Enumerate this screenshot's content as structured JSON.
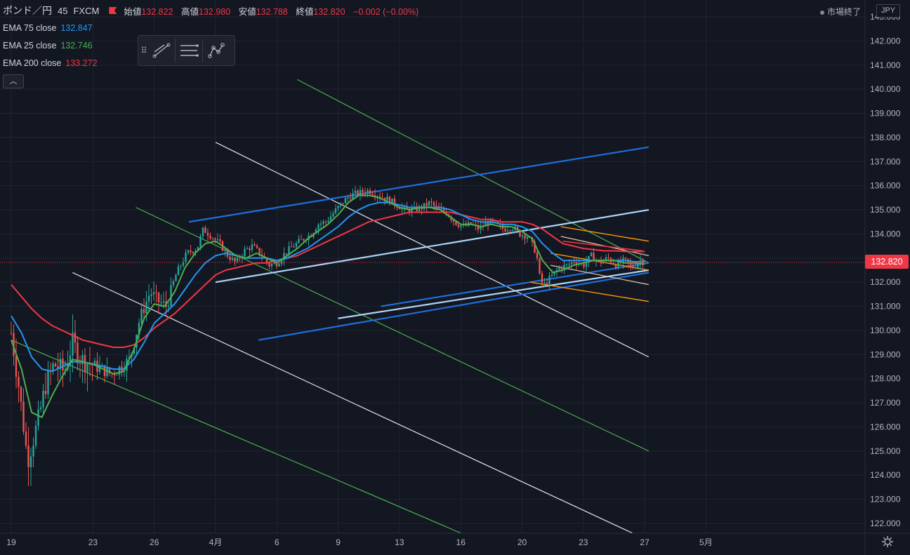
{
  "header": {
    "symbol": "ポンド／円",
    "interval": "45",
    "exchange": "FXCM",
    "open_label": "始値",
    "open": "132.822",
    "high_label": "高値",
    "high": "132.980",
    "low_label": "安値",
    "low": "132.788",
    "close_label": "終値",
    "close": "132.820",
    "change": "−0.002 (−0.00%)"
  },
  "indicators": [
    {
      "label": "EMA 75 close",
      "value": "132.847",
      "color": "#2196f3"
    },
    {
      "label": "EMA 25 close",
      "value": "132.746",
      "color": "#4caf50"
    },
    {
      "label": "EMA 200 close",
      "value": "133.272",
      "color": "#f23645"
    }
  ],
  "collapse_icon": "chevron-up-icon",
  "toolbar_icons": [
    "drag-handle-icon",
    "trend-line-icon",
    "parallel-lines-icon",
    "pattern-nodes-icon"
  ],
  "market_status": "市場終了",
  "currency": "JPY",
  "current_price": "132.820",
  "settings_icon": "gear-icon",
  "chart_data": {
    "type": "candlestick",
    "y_axis": {
      "min": 121.6,
      "max": 143.3,
      "ticks": [
        "143.000",
        "142.000",
        "141.000",
        "140.000",
        "139.000",
        "138.000",
        "137.000",
        "136.000",
        "135.000",
        "134.000",
        "133.000",
        "132.000",
        "131.000",
        "130.000",
        "129.000",
        "128.000",
        "127.000",
        "126.000",
        "125.000",
        "124.000",
        "123.000",
        "122.000"
      ]
    },
    "x_axis": {
      "range_days": [
        19,
        50.2
      ],
      "ticks": [
        {
          "label": "19",
          "day": 19
        },
        {
          "label": "23",
          "day": 23
        },
        {
          "label": "26",
          "day": 26
        },
        {
          "label": "4月",
          "day": 29
        },
        {
          "label": "6",
          "day": 32
        },
        {
          "label": "9",
          "day": 35
        },
        {
          "label": "13",
          "day": 38
        },
        {
          "label": "16",
          "day": 41
        },
        {
          "label": "20",
          "day": 44
        },
        {
          "label": "23",
          "day": 47
        },
        {
          "label": "27",
          "day": 50
        },
        {
          "label": "5月",
          "day": 53
        }
      ]
    },
    "grid": true,
    "close_path": [
      [
        19,
        129.9
      ],
      [
        19.4,
        127.5
      ],
      [
        19.8,
        124.6
      ],
      [
        20.3,
        126.2
      ],
      [
        20.7,
        127.8
      ],
      [
        21.1,
        128.6
      ],
      [
        21.6,
        128.3
      ],
      [
        22.0,
        129.5
      ],
      [
        22.4,
        128.8
      ],
      [
        22.9,
        128.6
      ],
      [
        23.4,
        128.4
      ],
      [
        23.9,
        128.2
      ],
      [
        24.4,
        128.5
      ],
      [
        24.8,
        128.8
      ],
      [
        25.3,
        130.5
      ],
      [
        25.8,
        131.6
      ],
      [
        26.2,
        131.2
      ],
      [
        26.6,
        131.0
      ],
      [
        27.1,
        132.4
      ],
      [
        27.6,
        133.2
      ],
      [
        28.1,
        133.4
      ],
      [
        28.4,
        134.2
      ],
      [
        28.8,
        133.9
      ],
      [
        29.2,
        133.6
      ],
      [
        29.6,
        133.1
      ],
      [
        30.0,
        132.8
      ],
      [
        30.4,
        133.3
      ],
      [
        30.8,
        133.5
      ],
      [
        31.3,
        133.1
      ],
      [
        31.6,
        132.7
      ],
      [
        32.0,
        132.8
      ],
      [
        32.4,
        133.2
      ],
      [
        32.8,
        133.5
      ],
      [
        33.3,
        133.8
      ],
      [
        33.7,
        134.0
      ],
      [
        34.0,
        134.4
      ],
      [
        34.4,
        134.5
      ],
      [
        34.8,
        134.9
      ],
      [
        35.2,
        135.3
      ],
      [
        35.6,
        135.6
      ],
      [
        36.0,
        135.7
      ],
      [
        36.5,
        135.8
      ],
      [
        37.0,
        135.6
      ],
      [
        37.5,
        135.4
      ],
      [
        37.9,
        135.2
      ],
      [
        38.3,
        135.0
      ],
      [
        38.7,
        135.0
      ],
      [
        39.1,
        135.1
      ],
      [
        39.5,
        135.3
      ],
      [
        39.9,
        135.0
      ],
      [
        40.3,
        134.9
      ],
      [
        40.7,
        134.5
      ],
      [
        41.1,
        134.3
      ],
      [
        41.5,
        134.4
      ],
      [
        41.9,
        134.2
      ],
      [
        42.3,
        134.5
      ],
      [
        42.7,
        134.4
      ],
      [
        43.1,
        134.2
      ],
      [
        43.5,
        134.3
      ],
      [
        43.9,
        134.0
      ],
      [
        44.3,
        133.9
      ],
      [
        44.7,
        133.2
      ],
      [
        44.9,
        132.0
      ],
      [
        45.1,
        131.9
      ],
      [
        45.4,
        132.2
      ],
      [
        45.8,
        132.6
      ],
      [
        46.2,
        132.7
      ],
      [
        46.6,
        132.9
      ],
      [
        47.0,
        132.7
      ],
      [
        47.4,
        133.1
      ],
      [
        47.8,
        132.8
      ],
      [
        48.2,
        133.0
      ],
      [
        48.6,
        132.7
      ],
      [
        49.0,
        132.9
      ],
      [
        49.4,
        132.6
      ],
      [
        49.8,
        132.9
      ],
      [
        50.0,
        132.82
      ]
    ],
    "ema_paths": {
      "ema25": [
        [
          19,
          129.6
        ],
        [
          19.5,
          128.4
        ],
        [
          20,
          126.6
        ],
        [
          20.5,
          126.4
        ],
        [
          21,
          127.3
        ],
        [
          21.5,
          128.1
        ],
        [
          22,
          128.8
        ],
        [
          22.5,
          128.7
        ],
        [
          23,
          128.6
        ],
        [
          23.5,
          128.4
        ],
        [
          24,
          128.2
        ],
        [
          24.5,
          128.3
        ],
        [
          25,
          129.2
        ],
        [
          25.5,
          130.5
        ],
        [
          26,
          131.1
        ],
        [
          26.5,
          131.0
        ],
        [
          27,
          131.6
        ],
        [
          27.5,
          132.6
        ],
        [
          28,
          133.2
        ],
        [
          28.5,
          133.6
        ],
        [
          29,
          133.7
        ],
        [
          29.5,
          133.4
        ],
        [
          30,
          133.1
        ],
        [
          30.5,
          133.0
        ],
        [
          31,
          133.2
        ],
        [
          31.5,
          133.0
        ],
        [
          32,
          132.8
        ],
        [
          32.5,
          133.1
        ],
        [
          33,
          133.4
        ],
        [
          33.5,
          133.8
        ],
        [
          34,
          134.1
        ],
        [
          34.5,
          134.4
        ],
        [
          35,
          134.8
        ],
        [
          35.5,
          135.3
        ],
        [
          36,
          135.6
        ],
        [
          36.5,
          135.6
        ],
        [
          37,
          135.5
        ],
        [
          37.5,
          135.3
        ],
        [
          38,
          135.1
        ],
        [
          38.5,
          135.0
        ],
        [
          39,
          135.1
        ],
        [
          39.5,
          135.1
        ],
        [
          40,
          135.0
        ],
        [
          40.5,
          134.7
        ],
        [
          41,
          134.4
        ],
        [
          41.5,
          134.4
        ],
        [
          42,
          134.3
        ],
        [
          42.5,
          134.4
        ],
        [
          43,
          134.3
        ],
        [
          43.5,
          134.3
        ],
        [
          44,
          134.1
        ],
        [
          44.5,
          133.8
        ],
        [
          45,
          132.9
        ],
        [
          45.5,
          132.4
        ],
        [
          46,
          132.5
        ],
        [
          46.5,
          132.7
        ],
        [
          47,
          132.8
        ],
        [
          47.5,
          132.9
        ],
        [
          48,
          132.9
        ],
        [
          48.5,
          132.9
        ],
        [
          49,
          132.8
        ],
        [
          49.5,
          132.8
        ],
        [
          50,
          132.75
        ]
      ],
      "ema75": [
        [
          19,
          130.6
        ],
        [
          19.5,
          129.9
        ],
        [
          20,
          128.9
        ],
        [
          20.5,
          128.4
        ],
        [
          21,
          128.3
        ],
        [
          21.5,
          128.5
        ],
        [
          22,
          128.7
        ],
        [
          22.5,
          128.7
        ],
        [
          23,
          128.6
        ],
        [
          23.5,
          128.5
        ],
        [
          24,
          128.4
        ],
        [
          24.5,
          128.4
        ],
        [
          25,
          128.8
        ],
        [
          25.5,
          129.5
        ],
        [
          26,
          130.3
        ],
        [
          26.5,
          130.7
        ],
        [
          27,
          131.1
        ],
        [
          27.5,
          131.7
        ],
        [
          28,
          132.3
        ],
        [
          28.5,
          132.8
        ],
        [
          29,
          133.1
        ],
        [
          29.5,
          133.2
        ],
        [
          30,
          133.1
        ],
        [
          30.5,
          133.0
        ],
        [
          31,
          133.0
        ],
        [
          31.5,
          133.0
        ],
        [
          32,
          132.9
        ],
        [
          32.5,
          133.0
        ],
        [
          33,
          133.2
        ],
        [
          33.5,
          133.4
        ],
        [
          34,
          133.7
        ],
        [
          34.5,
          134.0
        ],
        [
          35,
          134.3
        ],
        [
          35.5,
          134.7
        ],
        [
          36,
          135.0
        ],
        [
          36.5,
          135.2
        ],
        [
          37,
          135.3
        ],
        [
          37.5,
          135.3
        ],
        [
          38,
          135.2
        ],
        [
          38.5,
          135.1
        ],
        [
          39,
          135.1
        ],
        [
          39.5,
          135.1
        ],
        [
          40,
          135.1
        ],
        [
          40.5,
          135.0
        ],
        [
          41,
          134.8
        ],
        [
          41.5,
          134.6
        ],
        [
          42,
          134.5
        ],
        [
          42.5,
          134.5
        ],
        [
          43,
          134.4
        ],
        [
          43.5,
          134.4
        ],
        [
          44,
          134.3
        ],
        [
          44.5,
          134.1
        ],
        [
          45,
          133.6
        ],
        [
          45.5,
          133.2
        ],
        [
          46,
          132.9
        ],
        [
          46.5,
          132.9
        ],
        [
          47,
          132.9
        ],
        [
          47.5,
          132.9
        ],
        [
          48,
          132.9
        ],
        [
          48.5,
          132.9
        ],
        [
          49,
          132.9
        ],
        [
          49.5,
          132.85
        ],
        [
          50,
          132.85
        ]
      ],
      "ema200": [
        [
          19,
          131.9
        ],
        [
          19.5,
          131.4
        ],
        [
          20,
          130.9
        ],
        [
          20.5,
          130.5
        ],
        [
          21,
          130.2
        ],
        [
          21.5,
          130.0
        ],
        [
          22,
          129.8
        ],
        [
          22.5,
          129.6
        ],
        [
          23,
          129.5
        ],
        [
          23.5,
          129.4
        ],
        [
          24,
          129.3
        ],
        [
          24.5,
          129.3
        ],
        [
          25,
          129.4
        ],
        [
          25.5,
          129.7
        ],
        [
          26,
          130.1
        ],
        [
          26.5,
          130.4
        ],
        [
          27,
          130.7
        ],
        [
          27.5,
          131.1
        ],
        [
          28,
          131.5
        ],
        [
          28.5,
          131.9
        ],
        [
          29,
          132.3
        ],
        [
          29.5,
          132.5
        ],
        [
          30,
          132.6
        ],
        [
          30.5,
          132.7
        ],
        [
          31,
          132.8
        ],
        [
          31.5,
          132.8
        ],
        [
          32,
          132.9
        ],
        [
          32.5,
          133.0
        ],
        [
          33,
          133.1
        ],
        [
          33.5,
          133.3
        ],
        [
          34,
          133.5
        ],
        [
          34.5,
          133.7
        ],
        [
          35,
          133.9
        ],
        [
          35.5,
          134.1
        ],
        [
          36,
          134.3
        ],
        [
          36.5,
          134.5
        ],
        [
          37,
          134.6
        ],
        [
          37.5,
          134.7
        ],
        [
          38,
          134.8
        ],
        [
          38.5,
          134.9
        ],
        [
          39,
          134.9
        ],
        [
          39.5,
          134.9
        ],
        [
          40,
          134.9
        ],
        [
          40.5,
          134.9
        ],
        [
          41,
          134.8
        ],
        [
          41.5,
          134.7
        ],
        [
          42,
          134.6
        ],
        [
          42.5,
          134.6
        ],
        [
          43,
          134.5
        ],
        [
          43.5,
          134.5
        ],
        [
          44,
          134.5
        ],
        [
          44.5,
          134.4
        ],
        [
          45,
          134.2
        ],
        [
          45.5,
          133.9
        ],
        [
          46,
          133.6
        ],
        [
          46.5,
          133.5
        ],
        [
          47,
          133.4
        ],
        [
          47.5,
          133.35
        ],
        [
          48,
          133.3
        ],
        [
          48.5,
          133.3
        ],
        [
          49,
          133.28
        ],
        [
          50,
          133.27
        ]
      ]
    },
    "trend_lines": [
      {
        "color": "#4caf50",
        "w": 1.2,
        "from": [
          33.0,
          140.4
        ],
        "to": [
          50.2,
          132.8
        ]
      },
      {
        "color": "#4caf50",
        "w": 1.2,
        "from": [
          25.1,
          135.1
        ],
        "to": [
          50.2,
          125.0
        ]
      },
      {
        "color": "#4caf50",
        "w": 1.2,
        "from": [
          19.0,
          129.6
        ],
        "to": [
          41.0,
          121.6
        ]
      },
      {
        "color": "#e0e3eb",
        "w": 1.2,
        "from": [
          29.0,
          137.8
        ],
        "to": [
          50.2,
          128.9
        ]
      },
      {
        "color": "#e0e3eb",
        "w": 1.2,
        "from": [
          22.0,
          132.4
        ],
        "to": [
          49.4,
          121.6
        ]
      },
      {
        "color": "#1e6fd9",
        "w": 2.2,
        "from": [
          27.7,
          134.5
        ],
        "to": [
          50.2,
          137.6
        ]
      },
      {
        "color": "#1e6fd9",
        "w": 2.2,
        "from": [
          31.1,
          129.6
        ],
        "to": [
          50.2,
          132.4
        ]
      },
      {
        "color": "#1e6fd9",
        "w": 2.2,
        "from": [
          37.1,
          131.0
        ],
        "to": [
          50.2,
          132.8
        ]
      },
      {
        "color": "#aed4f5",
        "w": 2.2,
        "from": [
          29.0,
          132.0
        ],
        "to": [
          50.2,
          135.0
        ]
      },
      {
        "color": "#aed4f5",
        "w": 2.2,
        "from": [
          35.0,
          130.5
        ],
        "to": [
          50.2,
          132.5
        ]
      },
      {
        "color": "#ff9800",
        "w": 1.4,
        "from": [
          45.9,
          134.3
        ],
        "to": [
          50.2,
          133.7
        ]
      },
      {
        "color": "#ff9800",
        "w": 1.4,
        "from": [
          45.4,
          133.2
        ],
        "to": [
          50.2,
          132.5
        ]
      },
      {
        "color": "#ff9800",
        "w": 1.4,
        "from": [
          44.4,
          132.0
        ],
        "to": [
          50.2,
          131.2
        ]
      },
      {
        "color": "#e8c9a8",
        "w": 1.2,
        "from": [
          45.9,
          133.9
        ],
        "to": [
          50.2,
          133.1
        ]
      },
      {
        "color": "#e8c9a8",
        "w": 1.2,
        "from": [
          45.4,
          132.7
        ],
        "to": [
          50.2,
          131.9
        ]
      },
      {
        "color": "#f23645",
        "w": 1.6,
        "from": [
          46.0,
          133.7
        ],
        "to": [
          49.9,
          133.3
        ]
      }
    ]
  }
}
